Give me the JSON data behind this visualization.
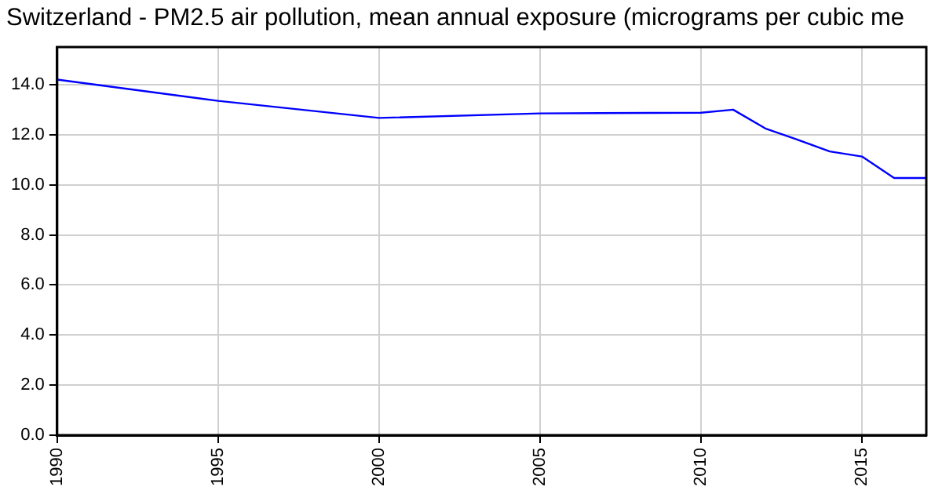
{
  "chart_data": {
    "type": "line",
    "title": "Switzerland - PM2.5 air pollution, mean annual exposure (micrograms per cubic me",
    "x": [
      1990,
      1995,
      2000,
      2005,
      2010,
      2011,
      2012,
      2013,
      2014,
      2015,
      2016,
      2017
    ],
    "series": [
      {
        "color": "#0000ff",
        "values": [
          14.2,
          13.35,
          12.67,
          12.85,
          12.88,
          13.0,
          12.25,
          11.8,
          11.33,
          11.13,
          10.27,
          10.27
        ]
      }
    ],
    "xlim": [
      1990,
      2017
    ],
    "xticks": [
      1990,
      1995,
      2000,
      2005,
      2010,
      2015
    ],
    "ylim": [
      0,
      15.5
    ],
    "yticks": [
      {
        "value": 0,
        "label": "0.0"
      },
      {
        "value": 2,
        "label": "2.0"
      },
      {
        "value": 4,
        "label": "4.0"
      },
      {
        "value": 6,
        "label": "6.0"
      },
      {
        "value": 8,
        "label": "8.0"
      },
      {
        "value": 10,
        "label": "10.0"
      },
      {
        "value": 12,
        "label": "12.0"
      },
      {
        "value": 14,
        "label": "14.0"
      }
    ],
    "grid": true,
    "legend": false,
    "marker": "none",
    "line_style": "solid"
  }
}
